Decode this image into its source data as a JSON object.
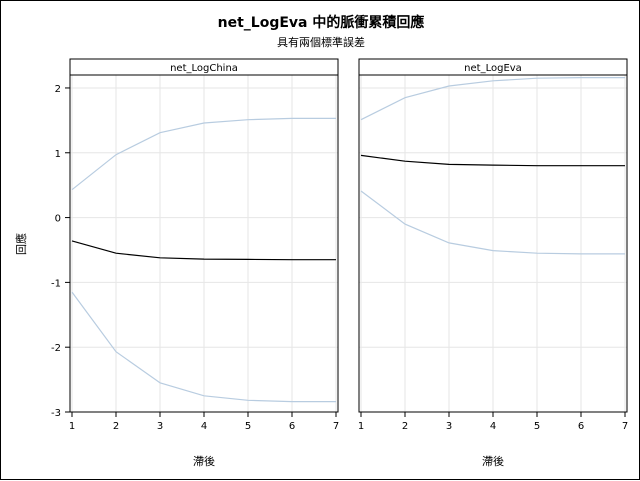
{
  "chart_data": {
    "type": "line",
    "title": "net_LogEva 中的脈衝累積回應",
    "subtitle": "具有兩個標準誤差",
    "ylabel": "回應",
    "xlabel": "滯後",
    "x": [
      1,
      2,
      3,
      4,
      5,
      6,
      7
    ],
    "ylim": [
      -3,
      2.2
    ],
    "yticks": [
      -3,
      -2,
      -1,
      0,
      1,
      2
    ],
    "grid": true,
    "colors": {
      "response": "#000000",
      "band": "#b8cce0",
      "grid": "#e6e6e6"
    },
    "panels": [
      {
        "name": "net_LogChina",
        "series": [
          {
            "role": "upper",
            "values": [
              0.43,
              0.97,
              1.31,
              1.46,
              1.51,
              1.53,
              1.53
            ]
          },
          {
            "role": "response",
            "values": [
              -0.36,
              -0.55,
              -0.62,
              -0.64,
              -0.645,
              -0.65,
              -0.65
            ]
          },
          {
            "role": "lower",
            "values": [
              -1.15,
              -2.07,
              -2.55,
              -2.75,
              -2.82,
              -2.84,
              -2.84
            ]
          }
        ]
      },
      {
        "name": "net_LogEva",
        "series": [
          {
            "role": "upper",
            "values": [
              1.51,
              1.85,
              2.03,
              2.11,
              2.15,
              2.16,
              2.16
            ]
          },
          {
            "role": "response",
            "values": [
              0.96,
              0.87,
              0.82,
              0.81,
              0.8,
              0.8,
              0.8
            ]
          },
          {
            "role": "lower",
            "values": [
              0.41,
              -0.1,
              -0.39,
              -0.51,
              -0.55,
              -0.56,
              -0.56
            ]
          }
        ]
      }
    ]
  }
}
